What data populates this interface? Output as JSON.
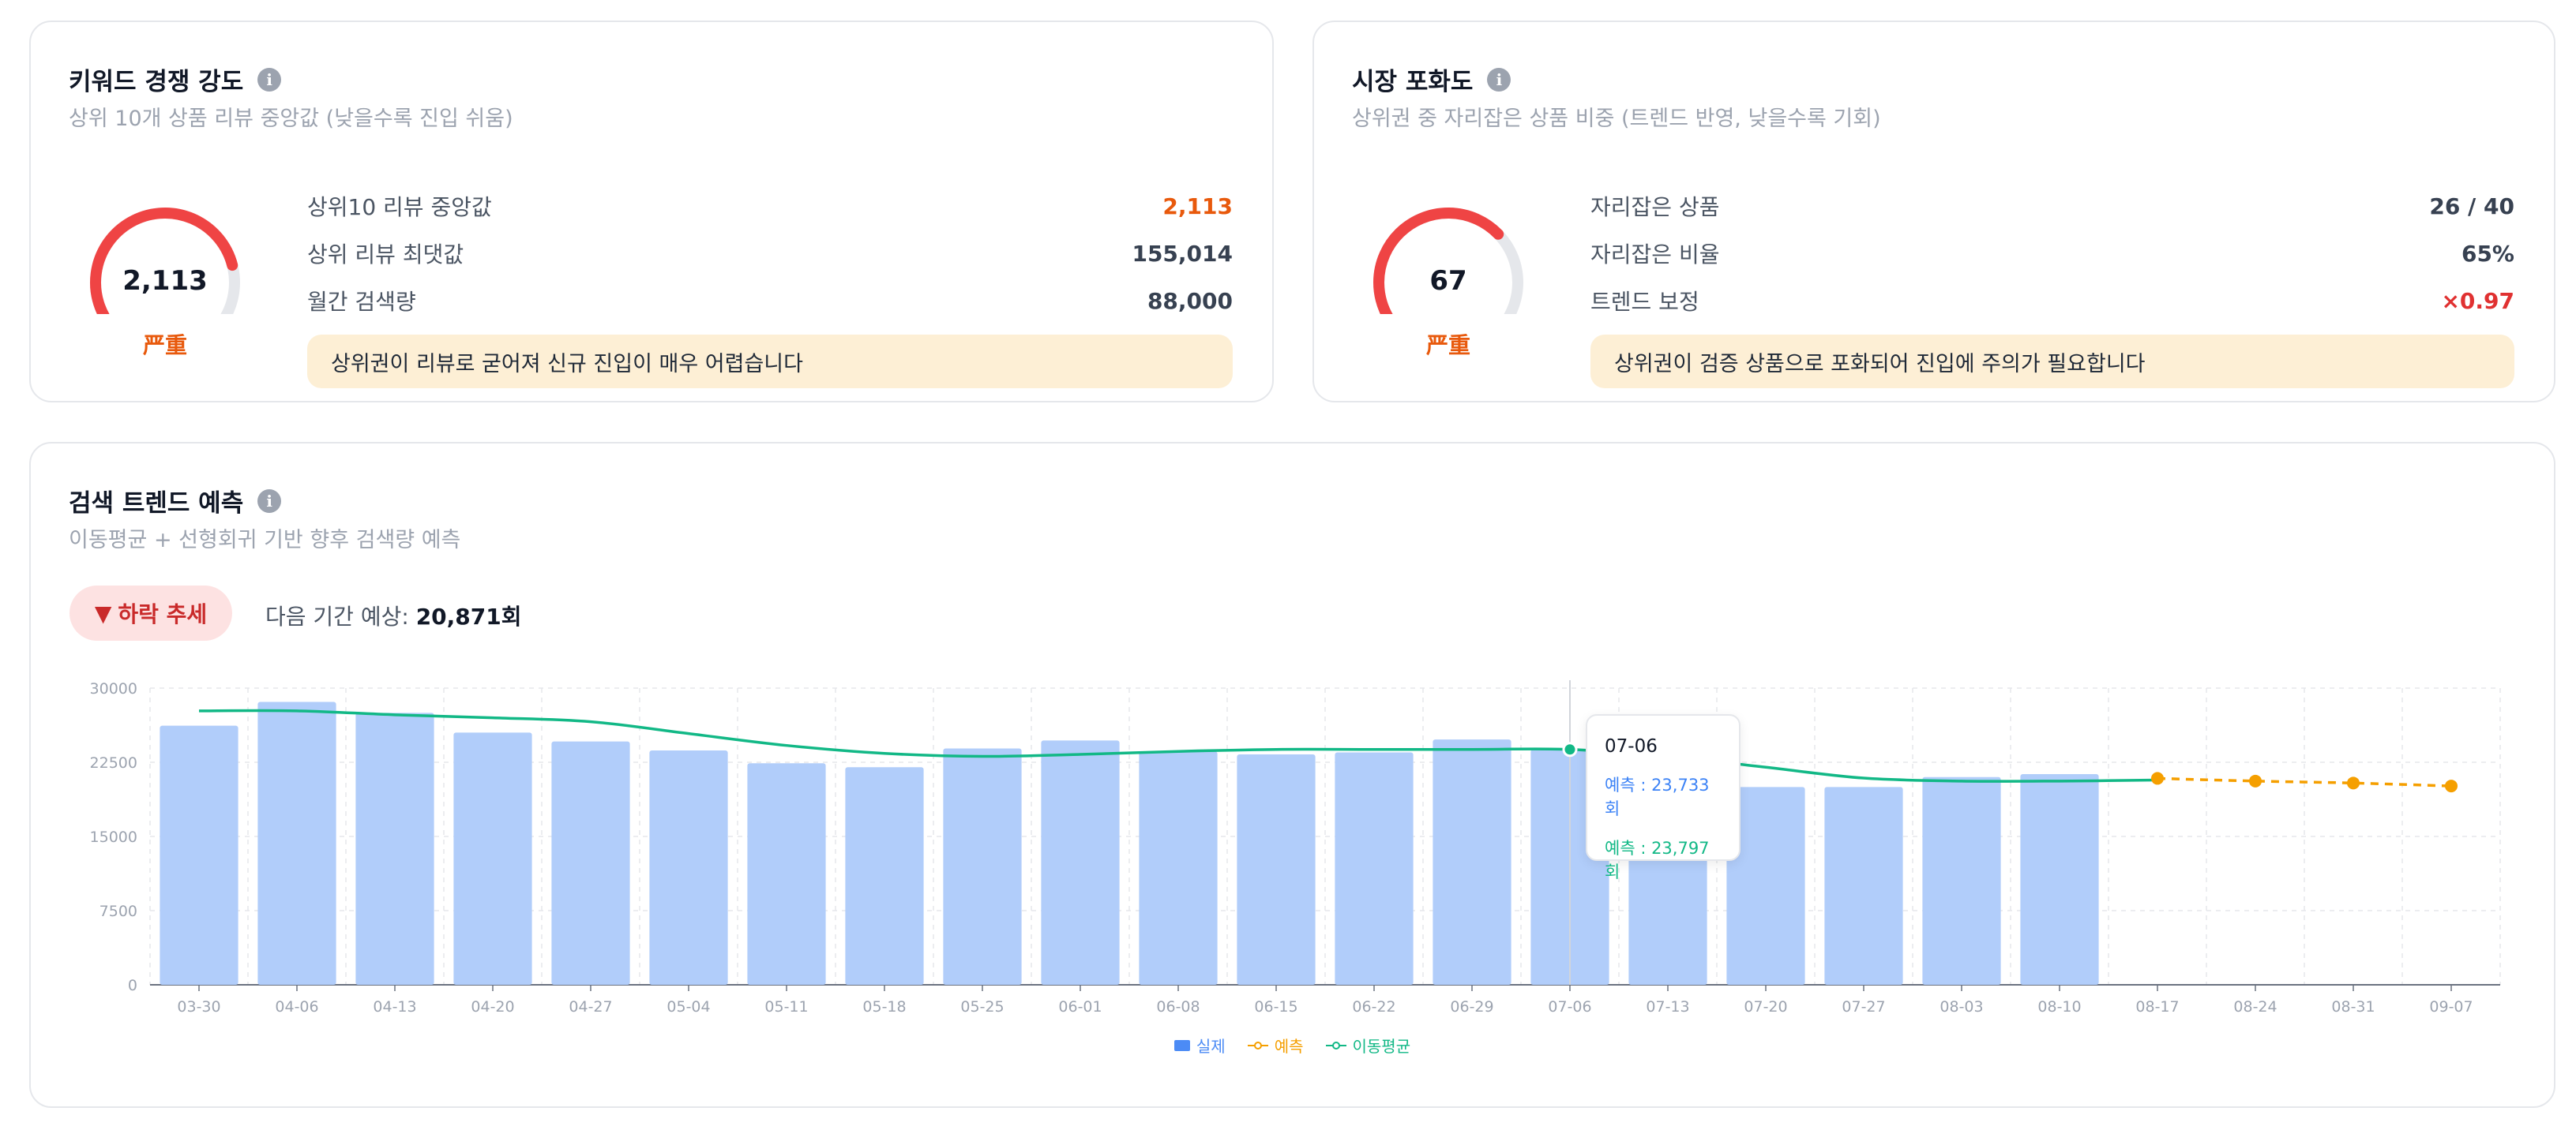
{
  "competition": {
    "title": "키워드 경쟁 강도",
    "subtitle": "상위 10개 상품 리뷰 중앙값 (낮을수록 진입 쉬움)",
    "gauge_value": "2,113",
    "gauge_fraction": 0.78,
    "level": "严重",
    "stats": [
      {
        "label": "상위10 리뷰 중앙값",
        "value": "2,113"
      },
      {
        "label": "상위 리뷰 최댓값",
        "value": "155,014"
      },
      {
        "label": "월간 검색량",
        "value": "88,000"
      }
    ],
    "notice": "상위권이 리뷰로 굳어져 신규 진입이 매우 어렵습니다"
  },
  "saturation": {
    "title": "시장 포화도",
    "subtitle": "상위권 중 자리잡은 상품 비중 (트렌드 반영, 낮을수록 기회)",
    "gauge_value": "67",
    "gauge_fraction": 0.67,
    "level": "严重",
    "stats": [
      {
        "label": "자리잡은 상품",
        "value": "26 / 40"
      },
      {
        "label": "자리잡은 비율",
        "value": "65%"
      },
      {
        "label": "트렌드 보정",
        "value": "×0.97"
      }
    ],
    "notice": "상위권이 검증 상품으로 포화되어 진입에 주의가 필요합니다"
  },
  "trend": {
    "title": "검색 트렌드 예측",
    "subtitle": "이동평균 + 선형회귀 기반 향후 검색량 예측",
    "badge_icon": "▼",
    "badge_label": "하락 추세",
    "forecast_label": "다음 기간 예상:",
    "forecast_value": "20,871회",
    "tooltip": {
      "date": "07-06",
      "line1": "예측 : 23,733회",
      "line2": "예측 : 23,797회"
    }
  },
  "colors": {
    "actual": "#b1cdfa",
    "legend_actual": "#4c8bf5",
    "forecast": "#f59f00",
    "moving_avg": "#12b886",
    "gauge_red": "#ef4444",
    "gauge_track": "#e5e7eb"
  },
  "chart_data": {
    "type": "bar",
    "categories": [
      "03-30",
      "04-06",
      "04-13",
      "04-20",
      "04-27",
      "05-04",
      "05-11",
      "05-18",
      "05-25",
      "06-01",
      "06-08",
      "06-15",
      "06-22",
      "06-29",
      "07-06",
      "07-13",
      "07-20",
      "07-27",
      "08-03",
      "08-10",
      "08-17",
      "08-24",
      "08-31",
      "09-07"
    ],
    "ylim": [
      0,
      30000
    ],
    "yticks": [
      0,
      7500,
      15000,
      22500,
      30000
    ],
    "grid": true,
    "legend_position": "bottom",
    "series": [
      {
        "name": "실제",
        "type": "bar",
        "values": [
          26200,
          28600,
          27500,
          25500,
          24600,
          23700,
          22400,
          22000,
          23900,
          24700,
          23600,
          23300,
          23500,
          24800,
          23800,
          23200,
          20000,
          20000,
          21000,
          21300,
          null,
          null,
          null,
          null
        ]
      },
      {
        "name": "예측",
        "type": "line",
        "dashed": true,
        "values": [
          null,
          null,
          null,
          null,
          null,
          null,
          null,
          null,
          null,
          null,
          null,
          null,
          null,
          null,
          23733,
          null,
          null,
          null,
          null,
          null,
          20871,
          20600,
          20400,
          20100
        ]
      },
      {
        "name": "이동평균",
        "type": "line",
        "values": [
          27700,
          27700,
          27300,
          27000,
          26600,
          25400,
          24200,
          23400,
          23100,
          23300,
          23600,
          23800,
          23800,
          23800,
          23797,
          23100,
          22000,
          20900,
          20600,
          20600,
          20700,
          null,
          null,
          null
        ]
      }
    ]
  }
}
